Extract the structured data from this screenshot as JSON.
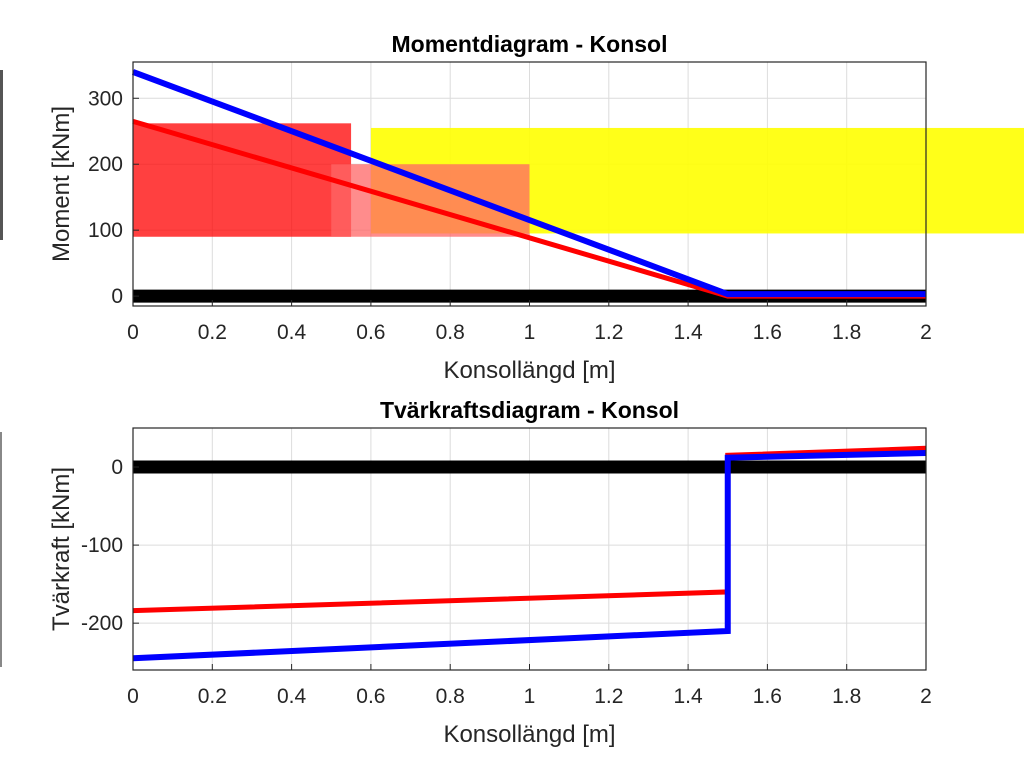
{
  "chart_data": [
    {
      "type": "line",
      "title": "Momentdiagram - Konsol",
      "xlabel": "Konsollängd [m]",
      "ylabel": "Moment [kNm]",
      "xlim": [
        0,
        2
      ],
      "ylim": [
        -15,
        355
      ],
      "xticks": [
        0,
        0.2,
        0.4,
        0.6,
        0.8,
        1,
        1.2,
        1.4,
        1.6,
        1.8,
        2
      ],
      "xtick_labels": [
        "0",
        "0.2",
        "0.4",
        "0.6",
        "0.8",
        "1",
        "1.2",
        "1.4",
        "1.6",
        "1.8",
        "2"
      ],
      "yticks": [
        0,
        100,
        200,
        300
      ],
      "ytick_labels": [
        "0",
        "100",
        "200",
        "300"
      ],
      "grid": true,
      "series": [
        {
          "color": "#000000",
          "width": 13,
          "x": [
            0,
            2
          ],
          "y": [
            0,
            0
          ]
        },
        {
          "color": "#ff0000",
          "width": 5,
          "x": [
            0,
            1.5,
            2
          ],
          "y": [
            265,
            0,
            0
          ]
        },
        {
          "color": "#0000ff",
          "width": 6,
          "x": [
            0,
            1.5,
            2
          ],
          "y": [
            340,
            3,
            3
          ]
        }
      ],
      "overlays": [
        {
          "color": "#ffff00",
          "x": [
            0.6,
            2.25
          ],
          "y": [
            95,
            255
          ]
        },
        {
          "color": "#ff0000",
          "x": [
            0,
            0.55
          ],
          "y": [
            90,
            262
          ]
        },
        {
          "color": "#ff6666",
          "x": [
            0.5,
            1.0
          ],
          "y": [
            90,
            200
          ]
        }
      ]
    },
    {
      "type": "line",
      "title": "Tvärkraftsdiagram - Konsol",
      "xlabel": "Konsollängd [m]",
      "ylabel": "Tvärkraft [kNm]",
      "xlim": [
        0,
        2
      ],
      "ylim": [
        -260,
        50
      ],
      "xticks": [
        0,
        0.2,
        0.4,
        0.6,
        0.8,
        1,
        1.2,
        1.4,
        1.6,
        1.8,
        2
      ],
      "xtick_labels": [
        "0",
        "0.2",
        "0.4",
        "0.6",
        "0.8",
        "1",
        "1.2",
        "1.4",
        "1.6",
        "1.8",
        "2"
      ],
      "yticks": [
        -200,
        -100,
        0
      ],
      "ytick_labels": [
        "-200",
        "-100",
        "0"
      ],
      "grid": true,
      "series": [
        {
          "color": "#000000",
          "width": 13,
          "x": [
            0,
            2
          ],
          "y": [
            0,
            0
          ]
        },
        {
          "color": "#ff0000",
          "width": 5,
          "x": [
            0,
            1.5,
            1.5,
            2
          ],
          "y": [
            -184,
            -160,
            15,
            24
          ]
        },
        {
          "color": "#0000ff",
          "width": 6,
          "x": [
            0,
            1.5,
            1.5,
            2
          ],
          "y": [
            -245,
            -210,
            12,
            18
          ]
        }
      ]
    }
  ]
}
